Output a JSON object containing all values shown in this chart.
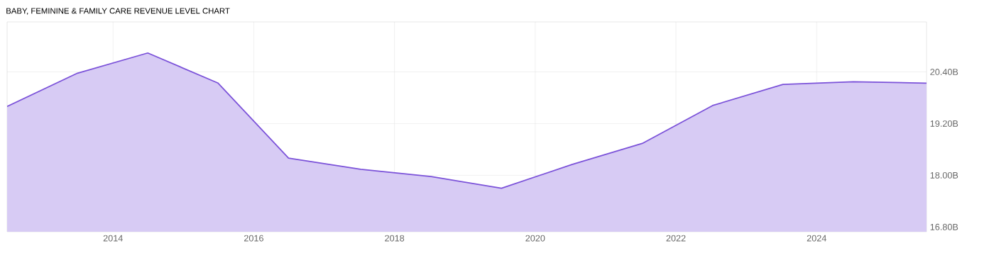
{
  "chart_data": {
    "type": "area",
    "title": "BABY, FEMININE & FAMILY CARE REVENUE LEVEL CHART",
    "x": [
      "2012-06-30",
      "2013-06-30",
      "2014-06-30",
      "2015-06-30",
      "2016-06-30",
      "2017-07-10",
      "2018-07-10",
      "2019-07-10",
      "2020-07-10",
      "2021-07-10",
      "2022-07-10",
      "2023-07-10",
      "2024-07-10",
      "2025-07-25"
    ],
    "series": [
      {
        "color": "#7b52d9",
        "values": [
          19.6,
          20.37,
          20.84,
          20.14,
          18.4,
          18.14,
          17.97,
          17.7,
          18.25,
          18.74,
          19.62,
          20.11,
          20.17,
          20.14
        ]
      }
    ],
    "xlim": [
      "2012-06-30",
      "2025-07-25"
    ],
    "ylim": [
      16.69,
      21.56
    ],
    "xticks": [
      "2014",
      "2016",
      "2018",
      "2020",
      "2022",
      "2024"
    ],
    "yticks": [
      {
        "value": 16.8,
        "label": "16.80B"
      },
      {
        "value": 18.0,
        "label": "18.00B"
      },
      {
        "value": 19.2,
        "label": "19.20B"
      },
      {
        "value": 20.4,
        "label": "20.40B"
      }
    ],
    "grid": true
  }
}
